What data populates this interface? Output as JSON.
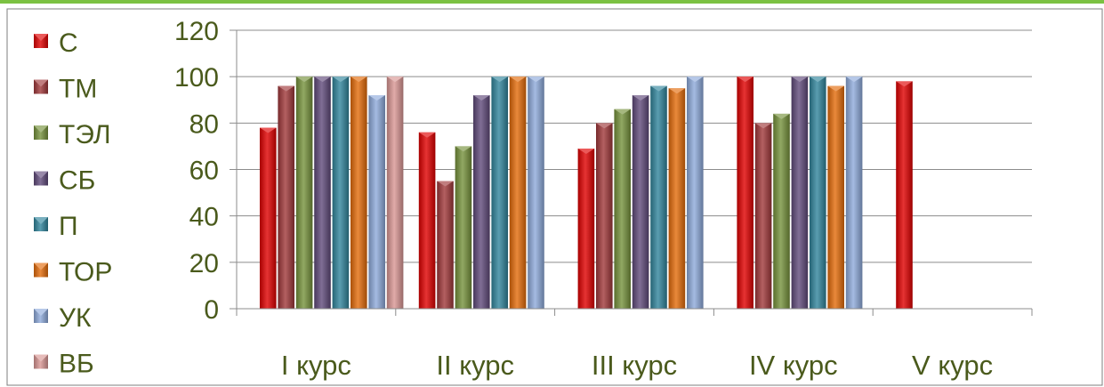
{
  "chart_data": {
    "type": "bar",
    "title": "",
    "xlabel": "",
    "ylabel": "",
    "categories": [
      "I курс",
      "II курс",
      "III курс",
      "IV курс",
      "V курс"
    ],
    "ylim": [
      0,
      120
    ],
    "yticks": [
      "0",
      "20",
      "40",
      "60",
      "80",
      "100",
      "120"
    ],
    "grid": true,
    "legend_position": "left",
    "series": [
      {
        "name": "С",
        "color": "#e00000",
        "values": [
          78,
          76,
          69,
          100,
          98
        ]
      },
      {
        "name": "ТМ",
        "color": "#a0383a",
        "values": [
          96,
          55,
          80,
          80,
          null
        ]
      },
      {
        "name": "ТЭЛ",
        "color": "#76923c",
        "values": [
          100,
          70,
          86,
          84,
          null
        ]
      },
      {
        "name": "СБ",
        "color": "#604a7b",
        "values": [
          100,
          92,
          92,
          100,
          null
        ]
      },
      {
        "name": "П",
        "color": "#31859c",
        "values": [
          100,
          100,
          96,
          100,
          null
        ]
      },
      {
        "name": "ТОР",
        "color": "#e46c0a",
        "values": [
          100,
          100,
          95,
          96,
          null
        ]
      },
      {
        "name": "УК",
        "color": "#8eaadb",
        "values": [
          92,
          100,
          100,
          100,
          null
        ]
      },
      {
        "name": "ВБ",
        "color": "#d99694",
        "values": [
          100,
          null,
          null,
          null,
          null
        ]
      }
    ]
  }
}
